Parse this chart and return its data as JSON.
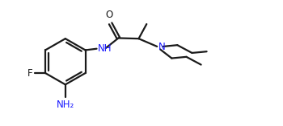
{
  "bg_color": "#ffffff",
  "line_color": "#1a1a1a",
  "n_color": "#1a1aff",
  "line_width": 1.6,
  "font_size": 8.5,
  "fig_width": 3.5,
  "fig_height": 1.57,
  "dpi": 100,
  "xlim": [
    0,
    10
  ],
  "ylim": [
    0,
    4.5
  ]
}
